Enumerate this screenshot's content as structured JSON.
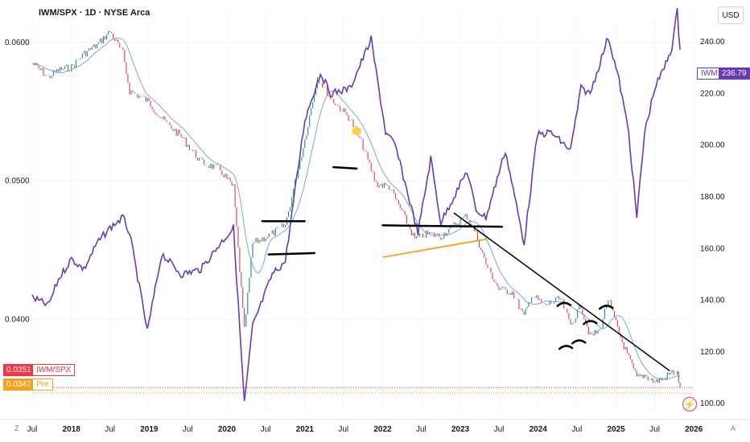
{
  "header": {
    "title": "IWM/SPX · 1D · NYSE Arca"
  },
  "currency_button": "USD",
  "corner_left": "Z",
  "corner_right": "A",
  "tags": {
    "ratio_value": "0.0351",
    "ratio_name": "IWM/SPX",
    "pre_value": "0.0347",
    "pre_name": "Pre",
    "iwm_name": "IWM",
    "iwm_value": "236.79"
  },
  "colors": {
    "ratio_up": "#089981",
    "ratio_down": "#f23645",
    "ma": "#5b8def",
    "iwm": "#673ab7",
    "trend": "#000000",
    "support": "#f7a21b",
    "pre": "#f7a21b"
  },
  "icons": {
    "flash": "lightning-icon",
    "hand": "pointing-hand-icon"
  },
  "chart_data": {
    "type": "line",
    "title": "IWM/SPX · 1D · NYSE Arca",
    "x_tick_labels": [
      "Jul",
      "2018",
      "Jul",
      "2019",
      "Jul",
      "2020",
      "Jul",
      "2021",
      "Jul",
      "2022",
      "Jul",
      "2023",
      "Jul",
      "2024",
      "Jul",
      "2025",
      "Jul",
      "2026"
    ],
    "left_axis": {
      "ticks": [
        "0.0600",
        "0.0500",
        "0.0400"
      ],
      "range": [
        0.0332,
        0.0619
      ]
    },
    "right_axis": {
      "currency": "USD",
      "ticks": [
        "240.00",
        "220.00",
        "200.00",
        "180.00",
        "160.00",
        "140.00",
        "120.00",
        "100.00"
      ],
      "range": [
        96,
        250
      ]
    },
    "x_range": [
      "2017-07-01",
      "2025-12-31"
    ],
    "series": [
      {
        "name": "IWM/SPX",
        "axis": "left",
        "x": [
          "2017-07-01",
          "2017-09-15",
          "2017-11-01",
          "2018-01-01",
          "2018-03-01",
          "2018-05-01",
          "2018-07-01",
          "2018-08-31",
          "2018-10-01",
          "2018-12-24",
          "2019-03-01",
          "2019-06-01",
          "2019-09-01",
          "2019-12-01",
          "2020-02-01",
          "2020-03-23",
          "2020-05-01",
          "2020-08-01",
          "2020-10-01",
          "2021-01-01",
          "2021-03-01",
          "2021-05-01",
          "2021-08-01",
          "2021-10-01",
          "2021-12-01",
          "2022-02-01",
          "2022-04-01",
          "2022-06-01",
          "2022-08-01",
          "2022-10-01",
          "2022-12-01",
          "2023-02-01",
          "2023-03-15",
          "2023-05-01",
          "2023-07-01",
          "2023-09-01",
          "2023-10-27",
          "2023-12-01",
          "2024-02-01",
          "2024-04-15",
          "2024-06-01",
          "2024-07-20",
          "2024-09-01",
          "2024-10-15",
          "2024-11-25",
          "2025-01-15",
          "2025-03-01",
          "2025-04-08",
          "2025-05-15",
          "2025-07-01",
          "2025-08-15",
          "2025-09-20",
          "2025-10-15",
          "2025-10-28"
        ],
        "y": [
          0.0585,
          0.0575,
          0.058,
          0.0582,
          0.0592,
          0.0598,
          0.0608,
          0.0592,
          0.0565,
          0.0558,
          0.0545,
          0.0532,
          0.0514,
          0.0508,
          0.0495,
          0.0392,
          0.0455,
          0.0462,
          0.0468,
          0.053,
          0.0575,
          0.056,
          0.0545,
          0.0525,
          0.0498,
          0.0496,
          0.0478,
          0.0458,
          0.0462,
          0.046,
          0.0468,
          0.0475,
          0.0462,
          0.044,
          0.0422,
          0.042,
          0.0402,
          0.0418,
          0.041,
          0.0415,
          0.0396,
          0.041,
          0.0388,
          0.0392,
          0.0415,
          0.039,
          0.0372,
          0.0358,
          0.036,
          0.0355,
          0.0358,
          0.0362,
          0.0361,
          0.0351
        ]
      },
      {
        "name": "IWM",
        "axis": "right",
        "x": [
          "2017-07-01",
          "2017-09-15",
          "2017-11-01",
          "2018-01-01",
          "2018-03-01",
          "2018-05-01",
          "2018-07-01",
          "2018-08-31",
          "2018-10-01",
          "2018-12-24",
          "2019-03-01",
          "2019-06-01",
          "2019-09-01",
          "2019-12-01",
          "2020-02-01",
          "2020-03-23",
          "2020-05-01",
          "2020-08-01",
          "2020-10-01",
          "2021-01-01",
          "2021-03-15",
          "2021-05-01",
          "2021-08-01",
          "2021-11-08",
          "2022-01-15",
          "2022-03-01",
          "2022-06-16",
          "2022-08-15",
          "2022-10-01",
          "2022-12-01",
          "2023-02-01",
          "2023-03-15",
          "2023-05-01",
          "2023-07-31",
          "2023-10-27",
          "2023-12-28",
          "2024-03-01",
          "2024-06-01",
          "2024-07-20",
          "2024-09-01",
          "2024-11-25",
          "2025-01-15",
          "2025-03-01",
          "2025-04-08",
          "2025-05-15",
          "2025-07-01",
          "2025-08-15",
          "2025-09-20",
          "2025-10-15",
          "2025-10-28"
        ],
        "y": [
          141,
          138,
          148,
          156,
          152,
          162,
          168,
          172,
          166,
          128,
          158,
          150,
          152,
          162,
          168,
          100,
          130,
          150,
          155,
          210,
          228,
          220,
          222,
          241,
          205,
          200,
          166,
          195,
          170,
          180,
          190,
          175,
          172,
          198,
          162,
          204,
          205,
          198,
          222,
          220,
          242,
          225,
          205,
          172,
          205,
          222,
          230,
          238,
          252,
          237
        ]
      }
    ],
    "annotations": {
      "ratio_last_value": "0.0351",
      "pre_value": "0.0347",
      "iwm_last_value": "236.79"
    }
  }
}
